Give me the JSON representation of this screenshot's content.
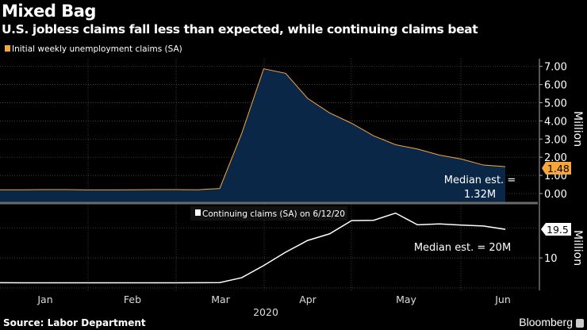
{
  "title": "Mixed Bag",
  "subtitle": "U.S. jobless claims fall less than expected, while continuing claims beat",
  "source": "Source: Labor Department",
  "brand": "Bloomberg",
  "colors": {
    "initial": "#f6a73b",
    "area": "#0b2748",
    "continuing": "#ffffff",
    "grid": "#555555"
  },
  "chart_data": [
    {
      "type": "area",
      "legend": "Initial weekly unemployment claims (SA)",
      "ylabel": "Million",
      "ylim": [
        0,
        7
      ],
      "yticks": [
        "0.00",
        "1.00",
        "2.00",
        "3.00",
        "4.00",
        "5.00",
        "6.00",
        "7.00"
      ],
      "last_value_label": "1.48",
      "annotation": [
        "Median est. =",
        "1.32M"
      ],
      "x": [
        "2020-01-04",
        "2020-01-11",
        "2020-01-18",
        "2020-01-25",
        "2020-02-01",
        "2020-02-08",
        "2020-02-15",
        "2020-02-22",
        "2020-02-29",
        "2020-03-07",
        "2020-03-14",
        "2020-03-21",
        "2020-03-28",
        "2020-04-04",
        "2020-04-11",
        "2020-04-18",
        "2020-04-25",
        "2020-05-02",
        "2020-05-09",
        "2020-05-16",
        "2020-05-23",
        "2020-05-30",
        "2020-06-06",
        "2020-06-13"
      ],
      "values": [
        0.21,
        0.21,
        0.22,
        0.22,
        0.2,
        0.2,
        0.21,
        0.22,
        0.22,
        0.21,
        0.28,
        3.31,
        6.87,
        6.62,
        5.24,
        4.44,
        3.87,
        3.18,
        2.69,
        2.45,
        2.12,
        1.9,
        1.57,
        1.48
      ]
    },
    {
      "type": "line",
      "legend": "Continuing claims (SA) on 6/12/20",
      "ylabel": "Million",
      "ylim": [
        0,
        27
      ],
      "yticks": [
        "10"
      ],
      "last_value_label": "19.5",
      "annotation": [
        "Median est. = 20M"
      ],
      "values": [
        1.75,
        1.73,
        1.73,
        1.73,
        1.73,
        1.73,
        1.73,
        1.73,
        1.73,
        1.75,
        1.78,
        3.41,
        7.45,
        11.9,
        15.8,
        18.0,
        22.4,
        22.5,
        24.9,
        21.0,
        21.3,
        20.9,
        20.6,
        19.5
      ]
    }
  ],
  "xaxis": {
    "months": [
      "Jan",
      "Feb",
      "Mar",
      "Apr",
      "May",
      "Jun"
    ],
    "year": "2020"
  }
}
